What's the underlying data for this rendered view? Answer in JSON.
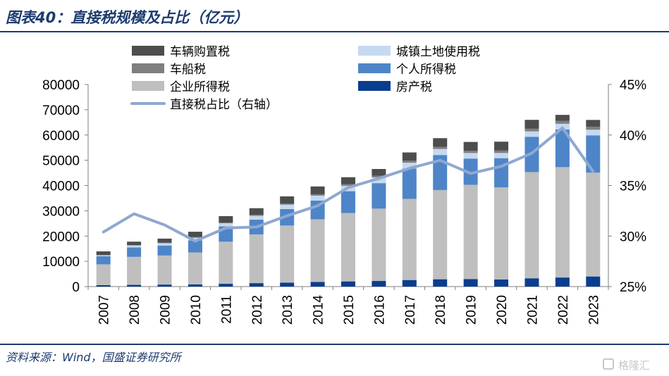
{
  "header": {
    "title": "图表40：直接税规模及占比（亿元）"
  },
  "footer": {
    "source": "资料来源：Wind，国盛证券研究所",
    "watermark": "格隆汇"
  },
  "chart_data": {
    "type": "bar",
    "stacked": true,
    "title": "",
    "categories": [
      "2007",
      "2008",
      "2009",
      "2010",
      "2011",
      "2012",
      "2013",
      "2014",
      "2015",
      "2016",
      "2017",
      "2018",
      "2019",
      "2020",
      "2021",
      "2022",
      "2023"
    ],
    "left_axis": {
      "min": 0,
      "max": 80000,
      "step": 10000,
      "ticks": [
        "0",
        "10000",
        "20000",
        "30000",
        "40000",
        "50000",
        "60000",
        "70000",
        "80000"
      ]
    },
    "right_axis": {
      "min": 25,
      "max": 45,
      "step": 5,
      "ticks": [
        "25%",
        "30%",
        "35%",
        "40%",
        "45%"
      ]
    },
    "series": [
      {
        "name": "房产税",
        "kind": "bar",
        "color": "#0a3d8f",
        "values": [
          580,
          680,
          800,
          890,
          1100,
          1370,
          1580,
          1850,
          2050,
          2220,
          2600,
          2890,
          2990,
          2840,
          3280,
          3590,
          4000
        ]
      },
      {
        "name": "企业所得税",
        "kind": "bar",
        "color": "#bfbfbf",
        "values": [
          8220,
          11080,
          11500,
          12600,
          16670,
          19280,
          22590,
          24780,
          27080,
          28630,
          32120,
          35320,
          37300,
          36420,
          42040,
          43700,
          41100
        ]
      },
      {
        "name": "个人所得税",
        "kind": "bar",
        "color": "#4e85c8",
        "values": [
          3190,
          3720,
          3950,
          4840,
          6050,
          5820,
          6530,
          7380,
          8620,
          10090,
          11970,
          13870,
          10390,
          11570,
          13990,
          14920,
          14780
        ]
      },
      {
        "name": "城镇土地使用税",
        "kind": "bar",
        "color": "#c6d9f0",
        "values": [
          390,
          820,
          920,
          1000,
          1220,
          1540,
          1720,
          1990,
          2140,
          2260,
          2360,
          2390,
          2200,
          2060,
          2130,
          2230,
          2210
        ]
      },
      {
        "name": "车船税",
        "kind": "bar",
        "color": "#7f7f7f",
        "values": [
          70,
          140,
          190,
          240,
          300,
          390,
          470,
          540,
          610,
          680,
          770,
          830,
          880,
          950,
          1040,
          1130,
          1200
        ]
      },
      {
        "name": "车辆购置税",
        "kind": "bar",
        "color": "#4d4d4d",
        "values": [
          1480,
          1340,
          1630,
          2140,
          2560,
          2630,
          2820,
          3100,
          2790,
          2670,
          3280,
          3450,
          3500,
          3530,
          3520,
          2400,
          2680
        ]
      },
      {
        "name": "直接税占比（右轴）",
        "kind": "line",
        "axis": "right",
        "color": "#8fa8d0",
        "values": [
          30.4,
          32.2,
          31.1,
          29.5,
          30.8,
          30.9,
          32.0,
          33.0,
          34.8,
          35.7,
          36.7,
          37.5,
          36.2,
          36.9,
          38.2,
          40.7,
          36.4
        ]
      }
    ],
    "legend_order": [
      "车辆购置税",
      "城镇土地使用税",
      "车船税",
      "个人所得税",
      "企业所得税",
      "房产税",
      "直接税占比（右轴）"
    ],
    "legend_position": "top",
    "grid": false
  }
}
